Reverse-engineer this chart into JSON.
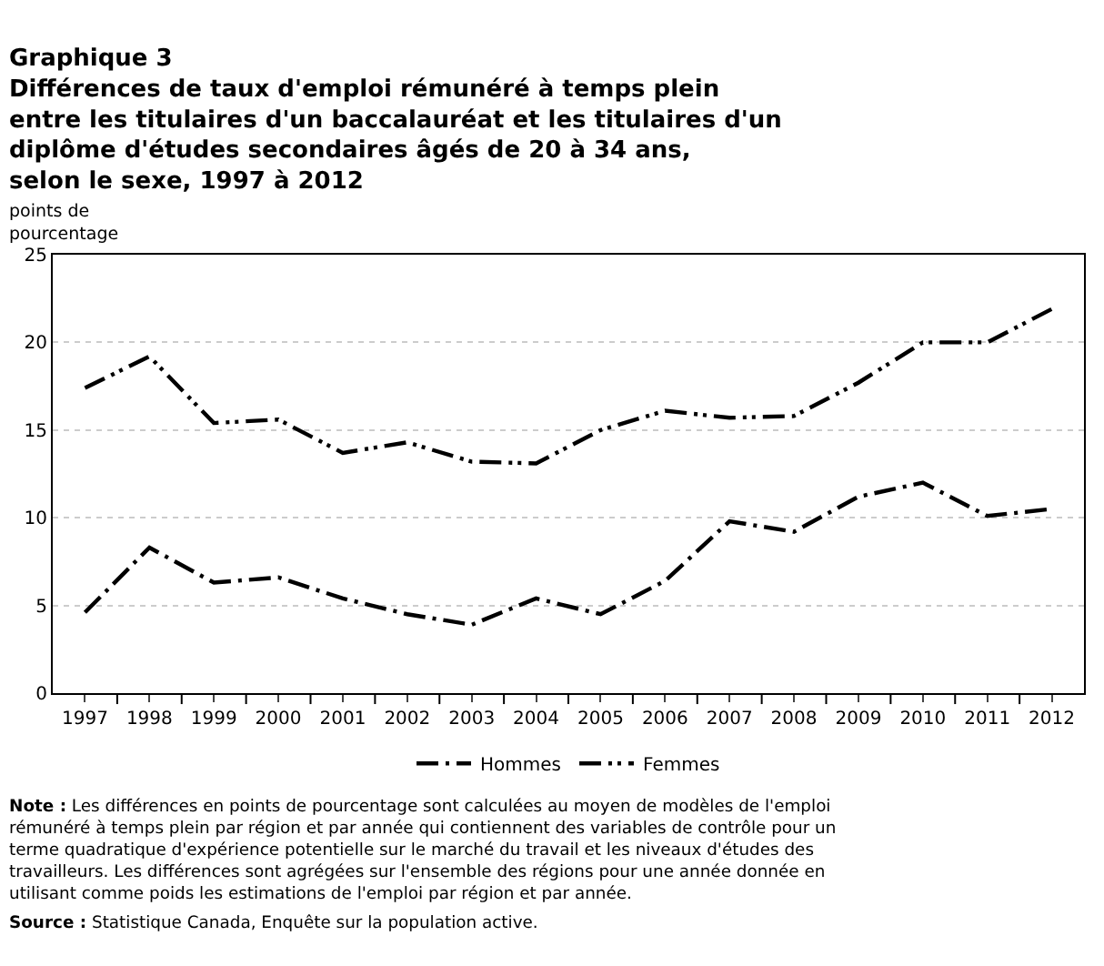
{
  "chart_data": {
    "type": "line",
    "title": "Graphique 3\nDifférences de taux d'emploi rémunéré à temps plein\nentre les titulaires d'un baccalauréat et les titulaires d'un\ndiplôme d'études secondaires âgés de 20 à 34 ans,\nselon le sexe, 1997 à 2012",
    "ylabel": "points de\npourcentage",
    "categories": [
      "1997",
      "1998",
      "1999",
      "2000",
      "2001",
      "2002",
      "2003",
      "2004",
      "2005",
      "2006",
      "2007",
      "2008",
      "2009",
      "2010",
      "2011",
      "2012"
    ],
    "series": [
      {
        "name": "Hommes",
        "color": "#000000",
        "line_style": "dashed",
        "values": [
          4.6,
          8.3,
          6.3,
          6.6,
          5.4,
          4.5,
          3.9,
          5.4,
          4.5,
          6.4,
          9.8,
          9.2,
          11.2,
          12.0,
          10.1,
          10.5
        ]
      },
      {
        "name": "Femmes",
        "color": "#000000",
        "line_style": "dotted",
        "values": [
          17.4,
          19.2,
          15.4,
          15.6,
          13.7,
          14.3,
          13.2,
          13.1,
          15.0,
          16.1,
          15.7,
          15.8,
          17.7,
          20.0,
          20.0,
          21.9
        ]
      }
    ],
    "ylim": [
      0,
      25
    ],
    "yticks": [
      0,
      5,
      10,
      15,
      20,
      25
    ],
    "grid": "y",
    "legend": "bottom",
    "marker": "none",
    "annotations": [
      "Note : Les différences en points de pourcentage sont calculées au moyen de modèles de l'emploi rémunéré à temps plein par région et par année qui contiennent des variables de contrôle pour un terme quadratique d'expérience potentielle sur le marché du travail et les niveaux d'études des travailleurs. Les différences sont agrégées sur l'ensemble des régions pour une année donnée en utilisant comme poids les estimations de l'emploi par région et par année.",
      "Source : Statistique Canada, Enquête sur la population active."
    ]
  }
}
